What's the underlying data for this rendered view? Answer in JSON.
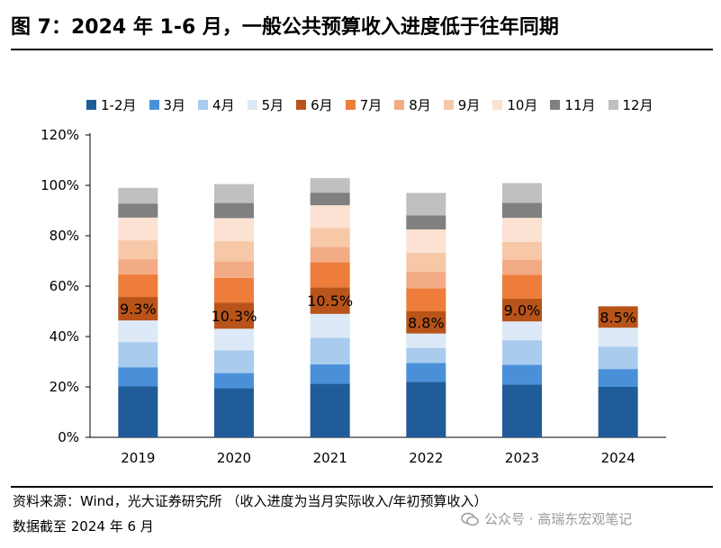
{
  "header": {
    "title": "图 7：2024 年 1-6 月，一般公共预算收入进度低于往年同期"
  },
  "footer": {
    "source": "资料来源：Wind，光大证券研究所 （收入进度为当月实际收入/年初预算收入）",
    "date": "数据截至 2024 年 6 月",
    "watermark": "公众号 · 高瑞东宏观笔记"
  },
  "chart_data": {
    "type": "bar",
    "stacked": true,
    "categories": [
      "2019",
      "2020",
      "2021",
      "2022",
      "2023",
      "2024"
    ],
    "ylim": [
      0,
      120
    ],
    "yticks": [
      "0%",
      "20%",
      "40%",
      "60%",
      "80%",
      "100%",
      "120%"
    ],
    "ytick_values": [
      0,
      20,
      40,
      60,
      80,
      100,
      120
    ],
    "series": [
      {
        "name": "1-2月",
        "color": "#1f5c99",
        "values": [
          20.3,
          19.5,
          21.3,
          22.0,
          20.9,
          20.0
        ]
      },
      {
        "name": "3月",
        "color": "#4a90d9",
        "values": [
          7.5,
          6.0,
          7.7,
          7.5,
          7.9,
          7.1
        ]
      },
      {
        "name": "4月",
        "color": "#a8cbee",
        "values": [
          10.0,
          9.0,
          10.5,
          6.0,
          9.7,
          8.9
        ]
      },
      {
        "name": "5月",
        "color": "#dde9f6",
        "values": [
          8.6,
          8.6,
          9.5,
          5.7,
          7.5,
          7.5
        ]
      },
      {
        "name": "6月",
        "color": "#b8541a",
        "values": [
          9.3,
          10.3,
          10.5,
          8.8,
          9.0,
          8.5
        ]
      },
      {
        "name": "7月",
        "color": "#ee7d3b",
        "values": [
          9.0,
          9.9,
          10.0,
          9.2,
          9.5,
          0
        ]
      },
      {
        "name": "8月",
        "color": "#f3ab85",
        "values": [
          6.0,
          6.5,
          6.1,
          6.5,
          6.0,
          0
        ]
      },
      {
        "name": "9月",
        "color": "#f7c8a8",
        "values": [
          7.5,
          8.0,
          7.5,
          7.5,
          7.0,
          0
        ]
      },
      {
        "name": "10月",
        "color": "#fbe2d2",
        "values": [
          9.0,
          9.2,
          9.0,
          9.3,
          9.6,
          0
        ]
      },
      {
        "name": "11月",
        "color": "#808080",
        "values": [
          5.6,
          6.0,
          5.0,
          5.6,
          6.0,
          0
        ]
      },
      {
        "name": "12月",
        "color": "#c0c0c0",
        "values": [
          6.2,
          7.5,
          5.8,
          8.9,
          7.8,
          0
        ]
      }
    ],
    "annotations": [
      {
        "category": "2019",
        "text": "9.3%"
      },
      {
        "category": "2020",
        "text": "10.3%"
      },
      {
        "category": "2021",
        "text": "10.5%"
      },
      {
        "category": "2022",
        "text": "8.8%"
      },
      {
        "category": "2023",
        "text": "9.0%"
      },
      {
        "category": "2024",
        "text": "8.5%"
      }
    ],
    "title": "",
    "xlabel": "",
    "ylabel": ""
  }
}
